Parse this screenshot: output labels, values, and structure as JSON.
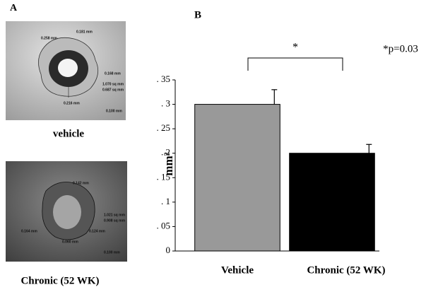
{
  "panel_a": {
    "label": "A",
    "top_image": {
      "caption": "vehicle",
      "measurements": [
        "0.258 mm",
        "0.181 mm",
        "0.168 mm",
        "1.070 sq mm",
        "0.687 sq mm",
        "0.216 mm",
        "0.100 mm"
      ]
    },
    "bottom_image": {
      "caption": "Chronic (52 WK)",
      "measurements": [
        "0.142 mm",
        "1.021 sq mm",
        "0.908 sq mm",
        "0.164 mm",
        "0.124 mm",
        "0.060 mm",
        "0.100 mm"
      ]
    }
  },
  "chart_data": {
    "type": "bar",
    "panel_label": "B",
    "y_label": "mm²",
    "categories": [
      "Vehicle",
      "Chronic (52 WK)"
    ],
    "values": [
      0.3,
      0.2
    ],
    "errors": [
      0.03,
      0.018
    ],
    "colors": [
      "#999999",
      "#000000"
    ],
    "ylim": [
      0,
      0.35
    ],
    "yticks": [
      0,
      {
        "value": 0.05,
        "label": ". 05"
      },
      {
        "value": 0.1,
        "label": ". 1"
      },
      {
        "value": 0.15,
        "label": ". 15"
      },
      {
        "value": 0.2,
        "label": ". 2"
      },
      {
        "value": 0.25,
        "label": ". 25"
      },
      {
        "value": 0.3,
        "label": ". 3"
      },
      {
        "value": 0.35,
        "label": ". 35"
      }
    ],
    "significance_mark": "*",
    "p_value_note": "*p=0.03"
  }
}
